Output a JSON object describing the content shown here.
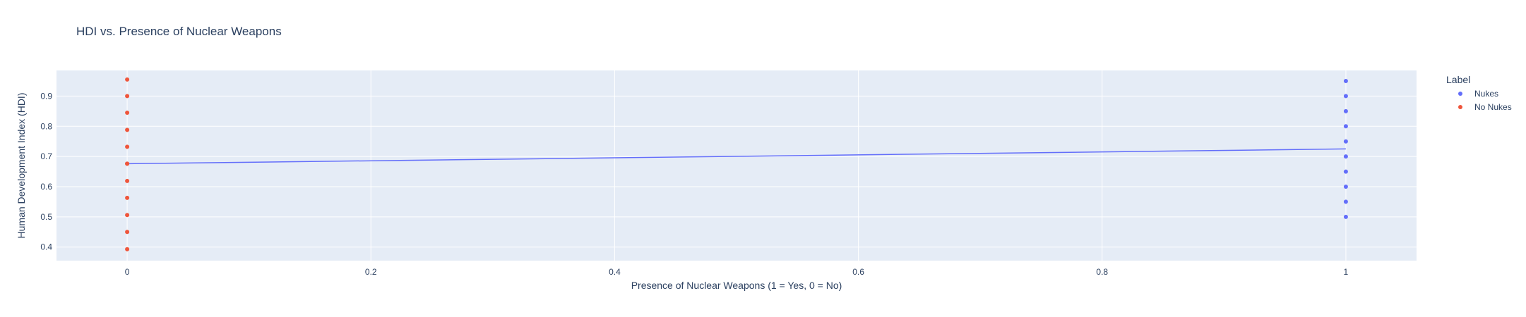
{
  "chart_data": {
    "type": "scatter",
    "title": "HDI vs. Presence of Nuclear Weapons",
    "xlabel": "Presence of Nuclear Weapons (1 = Yes, 0 = No)",
    "ylabel": "Human Development Index (HDI)",
    "xlim": [
      -0.058,
      1.058
    ],
    "ylim": [
      0.355,
      0.985
    ],
    "xticks": [
      "0",
      "0.2",
      "0.4",
      "0.6",
      "0.8",
      "1"
    ],
    "yticks": [
      "0.4",
      "0.5",
      "0.6",
      "0.7",
      "0.8",
      "0.9"
    ],
    "grid": true,
    "legend": {
      "title": "Label",
      "position": "top-right"
    },
    "series": [
      {
        "name": "Nukes",
        "color": "#636efa",
        "x": [
          1,
          1,
          1,
          1,
          1,
          1,
          1,
          1,
          1,
          1
        ],
        "y": [
          0.95,
          0.9,
          0.85,
          0.8,
          0.75,
          0.7,
          0.65,
          0.6,
          0.55,
          0.5
        ]
      },
      {
        "name": "No Nukes",
        "color": "#ef553b",
        "x": [
          0,
          0,
          0,
          0,
          0,
          0,
          0,
          0,
          0,
          0,
          0,
          0
        ],
        "y": [
          0.955,
          0.9,
          0.845,
          0.788,
          0.732,
          0.676,
          0.619,
          0.563,
          0.506,
          0.45,
          0.393,
          0.676
        ]
      }
    ],
    "trendline": {
      "color": "#636efa",
      "x": [
        0,
        1
      ],
      "y": [
        0.676,
        0.725
      ]
    }
  }
}
